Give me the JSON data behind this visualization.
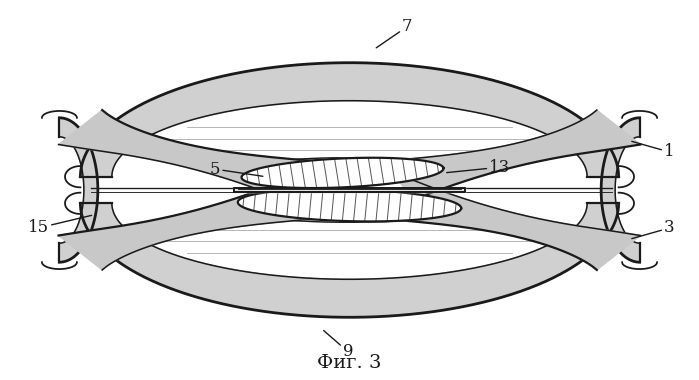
{
  "title": "Фиг. 3",
  "title_fontsize": 14,
  "bg_color": "#ffffff",
  "line_color": "#1a1a1a",
  "fig_width": 6.99,
  "fig_height": 3.8,
  "dpi": 100,
  "label_fontsize": 12
}
